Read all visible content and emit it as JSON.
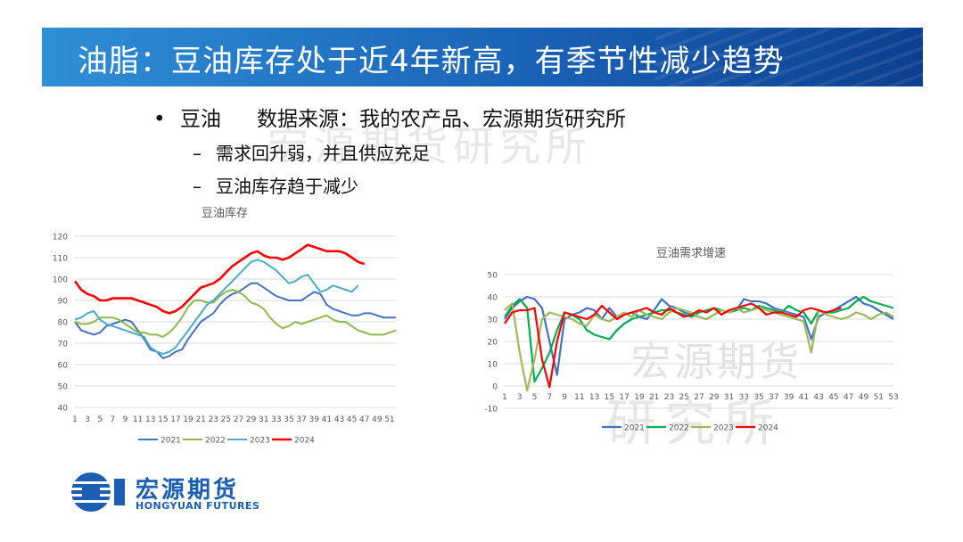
{
  "title": "油脂：豆油库存处于近4年新高，有季节性减少趋势",
  "bullets": {
    "main_label": "豆油",
    "source": "数据来源：我的农产品、宏源期货研究所",
    "sub": [
      "需求回升弱，并且供应充足",
      "豆油库存趋于减少"
    ]
  },
  "watermarks": [
    "宏源期货研究所",
    "宏源期货",
    "研究所"
  ],
  "logo": {
    "cn": "宏源期货",
    "en": "HONGYUAN FUTURES"
  },
  "colors": {
    "s2021": "#4472c4",
    "s2022": "#8dbb4a",
    "s2023": "#4bacc6",
    "s2024": "#ff0000",
    "title_bar": "#1a63b8"
  },
  "chart_data": [
    {
      "type": "line",
      "title": "豆油库存",
      "ylim": [
        40,
        120
      ],
      "yticks": [
        40,
        50,
        60,
        70,
        80,
        90,
        100,
        110,
        120
      ],
      "xticks": [
        "1",
        "3",
        "5",
        "7",
        "9",
        "11",
        "13",
        "15",
        "17",
        "19",
        "21",
        "23",
        "25",
        "27",
        "29",
        "31",
        "33",
        "35",
        "37",
        "39",
        "41",
        "43",
        "45",
        "47",
        "49",
        "51"
      ],
      "x_range": [
        1,
        52
      ],
      "series": [
        {
          "name": "2021",
          "color": "#4472c4",
          "values": [
            80,
            76,
            75,
            74,
            75,
            78,
            79,
            80,
            81,
            80,
            76,
            72,
            67,
            66,
            63,
            64,
            66,
            67,
            72,
            76,
            80,
            82,
            84,
            88,
            91,
            93,
            94,
            96,
            98,
            98,
            96,
            94,
            92,
            91,
            90,
            90,
            90,
            92,
            94,
            93,
            88,
            86,
            85,
            84,
            83,
            83,
            84,
            84,
            83,
            82,
            82,
            82
          ]
        },
        {
          "name": "2022",
          "color": "#8dbb4a",
          "values": [
            80,
            79,
            79,
            80,
            82,
            82,
            82,
            81,
            79,
            77,
            75,
            75,
            74,
            74,
            73,
            75,
            78,
            82,
            87,
            90,
            90,
            89,
            89,
            92,
            94,
            95,
            94,
            92,
            89,
            88,
            86,
            82,
            79,
            77,
            78,
            80,
            79,
            80,
            81,
            82,
            83,
            81,
            80,
            80,
            78,
            76,
            75,
            74,
            74,
            74,
            75,
            76
          ]
        },
        {
          "name": "2023",
          "color": "#4bacc6",
          "values": [
            81,
            82,
            84,
            85,
            81,
            79,
            78,
            77,
            76,
            75,
            74,
            73,
            68,
            66,
            65,
            66,
            68,
            72,
            76,
            80,
            84,
            88,
            90,
            93,
            96,
            99,
            102,
            105,
            108,
            109,
            108,
            106,
            104,
            101,
            98,
            99,
            101,
            102,
            98,
            94,
            95,
            97,
            96,
            95,
            94,
            97
          ]
        },
        {
          "name": "2024",
          "color": "#ff0000",
          "values": [
            99,
            95,
            93,
            92,
            90,
            90,
            91,
            91,
            91,
            91,
            90,
            89,
            88,
            87,
            85,
            84,
            85,
            87,
            90,
            93,
            96,
            97,
            98,
            100,
            103,
            106,
            108,
            110,
            112,
            113,
            111,
            110,
            110,
            109,
            110,
            112,
            114,
            116,
            115,
            114,
            113,
            113,
            113,
            112,
            110,
            108,
            107
          ]
        }
      ]
    },
    {
      "type": "line",
      "title": "豆油需求增速",
      "ylim": [
        -10,
        50
      ],
      "yticks": [
        -10,
        0,
        10,
        20,
        30,
        40,
        50
      ],
      "xticks": [
        "1",
        "3",
        "5",
        "7",
        "9",
        "11",
        "13",
        "15",
        "17",
        "19",
        "21",
        "23",
        "25",
        "27",
        "29",
        "31",
        "33",
        "35",
        "37",
        "39",
        "41",
        "43",
        "45",
        "47",
        "49",
        "51",
        "53"
      ],
      "x_range": [
        1,
        53
      ],
      "series": [
        {
          "name": "2021",
          "color": "#4472c4",
          "values": [
            30,
            35,
            38,
            40,
            39,
            35,
            20,
            5,
            30,
            32,
            33,
            35,
            34,
            30,
            35,
            31,
            32,
            33,
            31,
            30,
            34,
            39,
            36,
            35,
            33,
            32,
            31,
            30,
            32,
            34,
            33,
            34,
            39,
            38,
            38,
            37,
            35,
            34,
            33,
            32,
            31,
            21,
            31,
            33,
            34,
            36,
            38,
            40,
            37,
            36,
            34,
            32,
            30
          ]
        },
        {
          "name": "2022",
          "color": "#00b050",
          "values": [
            31,
            36,
            39,
            35,
            2,
            8,
            15,
            25,
            33,
            32,
            30,
            25,
            23,
            22,
            21,
            25,
            28,
            30,
            31,
            32,
            33,
            34,
            34,
            33,
            32,
            31,
            33,
            34,
            35,
            34,
            33,
            34,
            35,
            34,
            36,
            35,
            34,
            33,
            36,
            34,
            33,
            28,
            34,
            33,
            33,
            34,
            35,
            38,
            40,
            38,
            37,
            36,
            35
          ]
        },
        {
          "name": "2023",
          "color": "#9bbb59",
          "values": [
            34,
            37,
            15,
            -2,
            12,
            30,
            33,
            32,
            31,
            30,
            28,
            27,
            32,
            30,
            29,
            31,
            33,
            31,
            34,
            32,
            31,
            30,
            33,
            35,
            34,
            33,
            31,
            30,
            32,
            34,
            33,
            35,
            33,
            34,
            35,
            34,
            33,
            32,
            31,
            30,
            29,
            15,
            34,
            32,
            31,
            30,
            31,
            33,
            32,
            30,
            32,
            33,
            31
          ]
        },
        {
          "name": "2024",
          "color": "#ff0000",
          "values": [
            28,
            33,
            34,
            34,
            35,
            12,
            -0.5,
            20,
            33,
            32,
            31,
            30,
            32,
            36,
            33,
            30,
            32,
            33,
            34,
            35,
            33,
            32,
            35,
            33,
            31,
            32,
            34,
            33,
            35,
            32,
            34,
            35,
            36,
            37,
            35,
            32,
            33,
            33,
            32,
            31,
            34,
            35,
            34,
            33,
            34,
            35
          ]
        }
      ]
    }
  ]
}
